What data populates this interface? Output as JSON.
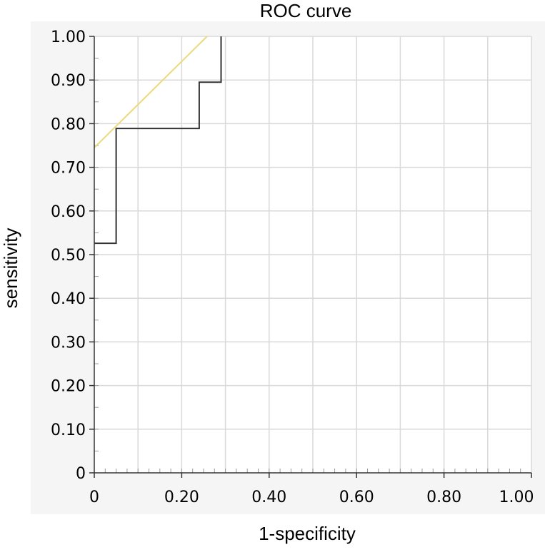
{
  "chart_data": {
    "type": "line",
    "title": "ROC curve",
    "xlabel": "1-specificity",
    "ylabel": "sensitivity",
    "xlim": [
      0,
      1
    ],
    "ylim": [
      0,
      1
    ],
    "grid": true,
    "x_ticks": [
      {
        "value": 0,
        "label": "0"
      },
      {
        "value": 0.2,
        "label": "0.20"
      },
      {
        "value": 0.4,
        "label": "0.40"
      },
      {
        "value": 0.6,
        "label": "0.60"
      },
      {
        "value": 0.8,
        "label": "0.80"
      },
      {
        "value": 1.0,
        "label": "1.00"
      }
    ],
    "y_ticks": [
      {
        "value": 0,
        "label": "0"
      },
      {
        "value": 0.1,
        "label": "0.10"
      },
      {
        "value": 0.2,
        "label": "0.20"
      },
      {
        "value": 0.3,
        "label": "0.30"
      },
      {
        "value": 0.4,
        "label": "0.40"
      },
      {
        "value": 0.5,
        "label": "0.50"
      },
      {
        "value": 0.6,
        "label": "0.60"
      },
      {
        "value": 0.7,
        "label": "0.70"
      },
      {
        "value": 0.8,
        "label": "0.80"
      },
      {
        "value": 0.9,
        "label": "0.90"
      },
      {
        "value": 1.0,
        "label": "1.00"
      }
    ],
    "series": [
      {
        "color": "#333333",
        "points": [
          [
            0,
            0.526
          ],
          [
            0.05,
            0.526
          ],
          [
            0.05,
            0.789
          ],
          [
            0.24,
            0.789
          ],
          [
            0.24,
            0.895
          ],
          [
            0.29,
            0.895
          ],
          [
            0.29,
            1.0
          ]
        ]
      },
      {
        "color": "#ecd97a",
        "points": [
          [
            0,
            0.745
          ],
          [
            0.258,
            1.0
          ]
        ]
      }
    ]
  }
}
